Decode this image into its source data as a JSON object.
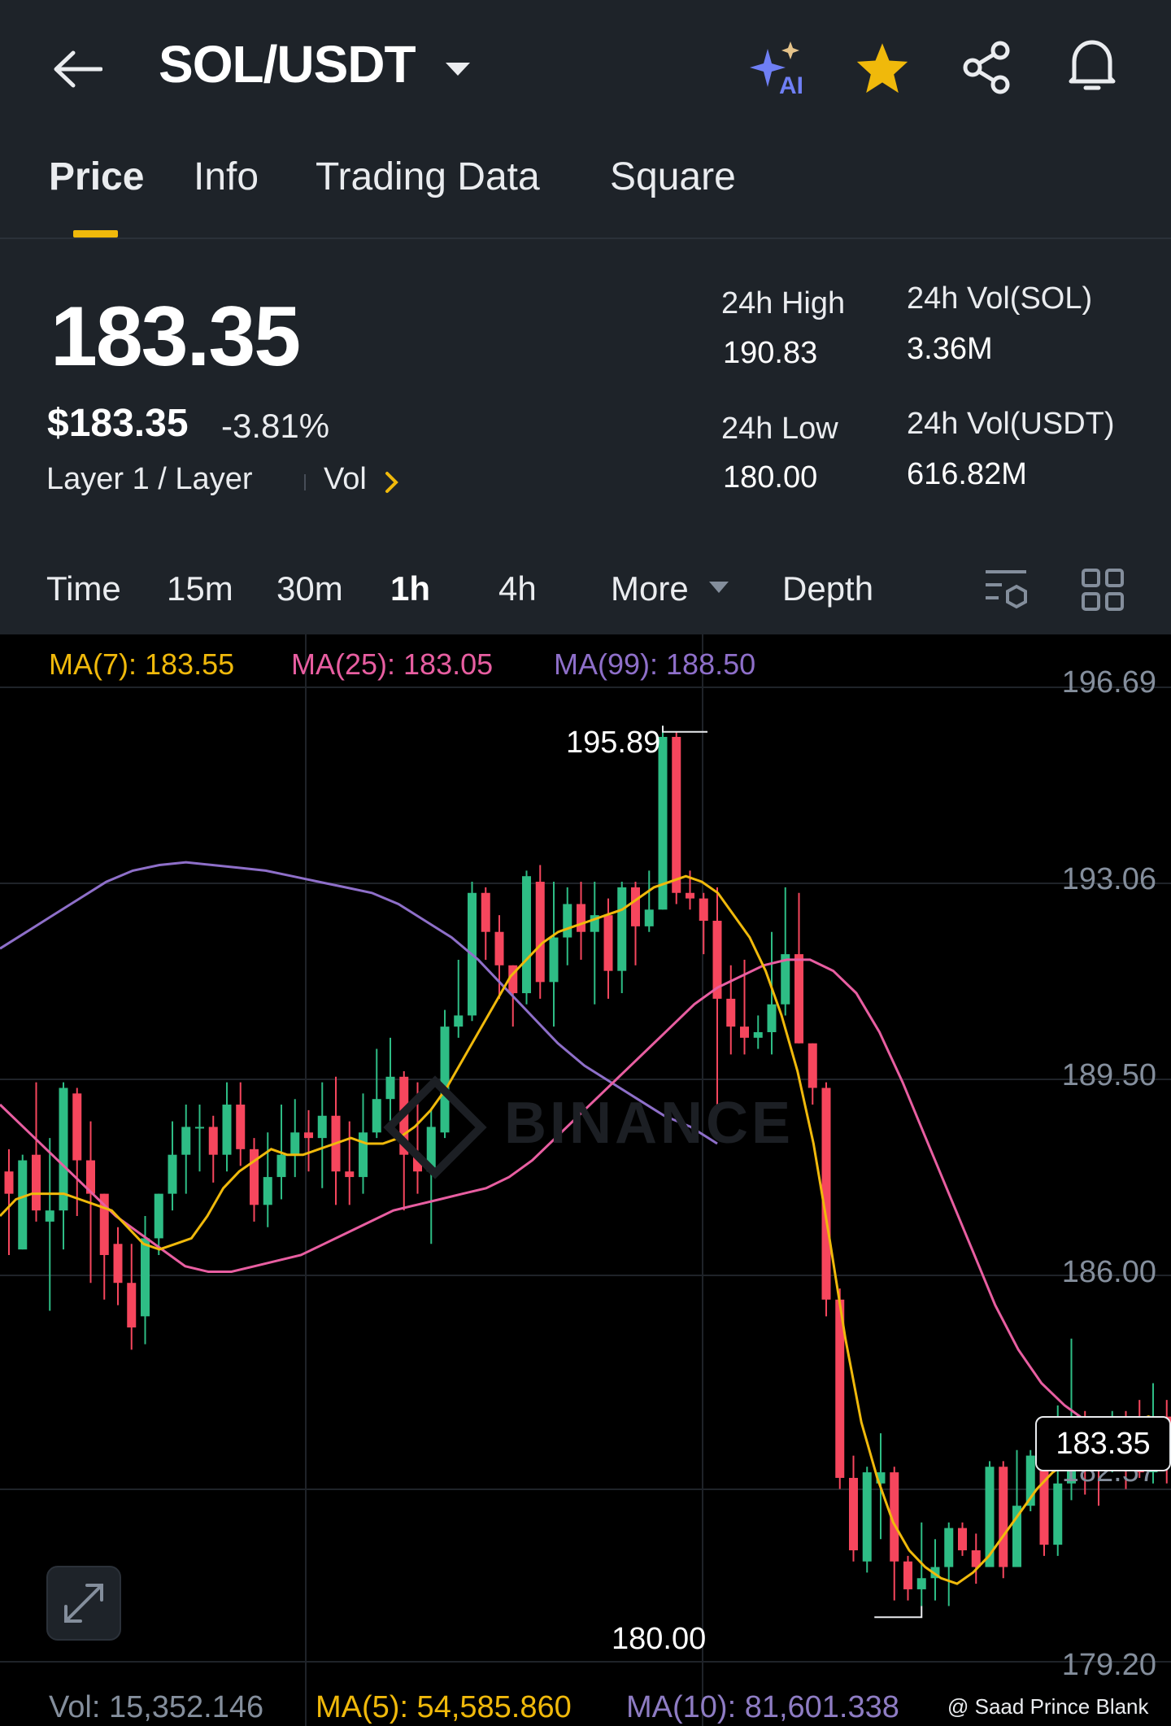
{
  "header": {
    "title": "SOL/USDT",
    "ai_label": "AI"
  },
  "tabs": [
    {
      "label": "Price",
      "active": true
    },
    {
      "label": "Info"
    },
    {
      "label": "Trading Data"
    },
    {
      "label": "Square"
    }
  ],
  "price": {
    "last": "183.35",
    "usd": "$183.35",
    "change": "-3.81%",
    "tag_category": "Layer 1 / Layer",
    "tag_vol": "Vol"
  },
  "stats": {
    "high_label": "24h High",
    "high_value": "190.83",
    "low_label": "24h Low",
    "low_value": "180.00",
    "vol_sol_label": "24h Vol(SOL)",
    "vol_sol_value": "3.36M",
    "vol_usdt_label": "24h Vol(USDT)",
    "vol_usdt_value": "616.82M"
  },
  "intervals": [
    "Time",
    "15m",
    "30m",
    "1h",
    "4h"
  ],
  "interval_active": "1h",
  "more_label": "More",
  "depth_label": "Depth",
  "ma_legend": {
    "ma7": "MA(7): 183.55",
    "ma25": "MA(25): 183.05",
    "ma99": "MA(99): 188.50"
  },
  "colors": {
    "up": "#2ebd85",
    "down": "#f6465d",
    "ma7": "#f0b90b",
    "ma25": "#e85ea1",
    "ma99": "#8e6fc9",
    "accent": "#f0b90b",
    "vol_ma10": "#8e7cc3"
  },
  "chart_data": {
    "type": "candlestick",
    "y_ticks": [
      "196.69",
      "193.06",
      "189.50",
      "186.00",
      "182.57",
      "179.20"
    ],
    "ylim": [
      179.2,
      196.69
    ],
    "high_marker": "195.89",
    "low_marker": "180.00",
    "current_price": "183.35",
    "candles": [
      [
        188.0,
        187.6,
        188.4,
        186.5
      ],
      [
        186.6,
        188.2,
        188.3,
        186.6
      ],
      [
        188.3,
        187.3,
        189.6,
        187.1
      ],
      [
        187.1,
        187.3,
        188.6,
        185.5
      ],
      [
        187.3,
        189.5,
        189.6,
        186.6
      ],
      [
        189.4,
        188.2,
        189.5,
        187.2
      ],
      [
        188.2,
        187.6,
        188.9,
        186.0
      ],
      [
        187.6,
        186.5,
        187.6,
        185.7
      ],
      [
        186.7,
        186.0,
        187.0,
        185.6
      ],
      [
        186.0,
        185.2,
        186.7,
        184.8
      ],
      [
        185.4,
        186.8,
        187.2,
        184.9
      ],
      [
        186.8,
        187.6,
        187.6,
        186.5
      ],
      [
        187.6,
        188.3,
        188.9,
        187.3
      ],
      [
        188.3,
        188.8,
        189.2,
        187.6
      ],
      [
        188.8,
        188.8,
        189.2,
        188.0
      ],
      [
        188.8,
        188.3,
        189.0,
        187.8
      ],
      [
        188.3,
        189.2,
        189.6,
        188.0
      ],
      [
        189.2,
        188.4,
        189.6,
        188.1
      ],
      [
        188.4,
        187.4,
        188.6,
        187.1
      ],
      [
        187.4,
        187.9,
        188.7,
        187.0
      ],
      [
        187.9,
        188.3,
        189.2,
        187.5
      ],
      [
        188.3,
        188.7,
        189.3,
        187.9
      ],
      [
        188.7,
        188.6,
        189.1,
        188.0
      ],
      [
        188.6,
        189.0,
        189.6,
        187.7
      ],
      [
        189.0,
        188.0,
        189.7,
        187.4
      ],
      [
        188.0,
        187.9,
        188.9,
        187.4
      ],
      [
        187.9,
        188.7,
        189.4,
        187.6
      ],
      [
        188.7,
        189.3,
        190.2,
        188.6
      ],
      [
        189.3,
        189.7,
        190.4,
        188.8
      ],
      [
        189.7,
        188.3,
        189.8,
        187.3
      ],
      [
        188.3,
        188.0,
        189.6,
        187.6
      ],
      [
        188.0,
        188.8,
        189.1,
        186.7
      ],
      [
        188.7,
        190.6,
        190.9,
        188.6
      ],
      [
        190.6,
        190.8,
        191.8,
        190.4
      ],
      [
        190.8,
        193.0,
        193.2,
        190.7
      ],
      [
        193.0,
        192.3,
        193.1,
        191.8
      ],
      [
        192.3,
        191.7,
        192.6,
        191.1
      ],
      [
        191.7,
        191.2,
        191.7,
        190.6
      ],
      [
        191.2,
        193.3,
        193.4,
        191.0
      ],
      [
        193.2,
        191.4,
        193.5,
        191.1
      ],
      [
        191.4,
        192.2,
        193.2,
        190.6
      ],
      [
        192.2,
        192.8,
        193.1,
        191.7
      ],
      [
        192.8,
        192.3,
        193.2,
        191.8
      ],
      [
        192.3,
        192.6,
        193.2,
        191.0
      ],
      [
        192.6,
        191.6,
        192.9,
        191.1
      ],
      [
        191.6,
        193.1,
        193.2,
        191.2
      ],
      [
        193.1,
        192.4,
        193.2,
        191.7
      ],
      [
        192.4,
        192.7,
        193.4,
        192.3
      ],
      [
        192.7,
        195.8,
        196.0,
        192.7
      ],
      [
        195.8,
        193.0,
        195.9,
        192.8
      ],
      [
        193.0,
        192.9,
        193.4,
        192.7
      ],
      [
        192.9,
        192.5,
        193.0,
        191.9
      ],
      [
        192.5,
        191.1,
        193.1,
        189.2
      ],
      [
        191.1,
        190.6,
        191.7,
        190.1
      ],
      [
        190.6,
        190.4,
        191.8,
        190.1
      ],
      [
        190.4,
        190.5,
        190.8,
        190.2
      ],
      [
        190.5,
        191.0,
        192.3,
        190.1
      ],
      [
        191.0,
        191.9,
        193.1,
        190.8
      ],
      [
        191.9,
        190.3,
        193.0,
        190.3
      ],
      [
        190.3,
        189.5,
        190.3,
        189.2
      ],
      [
        189.5,
        185.7,
        189.6,
        185.4
      ],
      [
        185.7,
        182.5,
        185.9,
        182.3
      ],
      [
        182.5,
        181.2,
        182.9,
        181.0
      ],
      [
        181.0,
        182.6,
        182.7,
        180.8
      ],
      [
        182.4,
        182.6,
        183.3,
        181.4
      ],
      [
        182.6,
        181.0,
        182.7,
        180.3
      ],
      [
        181.0,
        180.5,
        181.1,
        180.3
      ],
      [
        180.5,
        180.7,
        181.7,
        180.2
      ],
      [
        180.7,
        180.9,
        181.4,
        180.3
      ],
      [
        180.9,
        181.6,
        181.7,
        180.2
      ],
      [
        181.6,
        181.2,
        181.7,
        181.1
      ],
      [
        181.2,
        180.9,
        181.5,
        180.6
      ],
      [
        180.9,
        182.7,
        182.8,
        181.3
      ],
      [
        182.7,
        180.9,
        182.8,
        180.7
      ],
      [
        180.9,
        182.0,
        183.0,
        180.9
      ],
      [
        182.0,
        182.9,
        183.0,
        181.9
      ],
      [
        182.9,
        181.3,
        183.0,
        181.1
      ],
      [
        181.3,
        182.4,
        183.8,
        181.1
      ],
      [
        182.4,
        183.5,
        185.0,
        182.1
      ],
      [
        183.5,
        183.3,
        183.7,
        182.2
      ],
      [
        183.3,
        182.9,
        183.5,
        182.0
      ],
      [
        182.9,
        183.6,
        183.7,
        182.6
      ],
      [
        183.6,
        183.4,
        183.7,
        182.3
      ],
      [
        183.4,
        182.6,
        183.9,
        182.5
      ],
      [
        182.6,
        183.6,
        184.2,
        182.4
      ],
      [
        183.6,
        182.8,
        183.9,
        182.4
      ],
      [
        182.8,
        183.2,
        183.8,
        182.6
      ]
    ],
    "ma7": [
      187.2,
      187.5,
      187.6,
      187.6,
      187.6,
      187.5,
      187.4,
      187.3,
      187.0,
      186.7,
      186.6,
      186.7,
      186.8,
      187.2,
      187.7,
      188.0,
      188.2,
      188.4,
      188.3,
      188.3,
      188.4,
      188.5,
      188.6,
      188.5,
      188.5,
      188.6,
      188.8,
      189.1,
      189.5,
      190.0,
      190.5,
      191.0,
      191.5,
      191.8,
      192.1,
      192.3,
      192.4,
      192.5,
      192.6,
      192.7,
      192.9,
      193.1,
      193.2,
      193.3,
      193.2,
      193.0,
      192.6,
      192.2,
      191.6,
      190.8,
      189.8,
      188.5,
      186.8,
      185.0,
      183.5,
      182.5,
      181.7,
      181.2,
      180.9,
      180.7,
      180.6,
      180.8,
      181.1,
      181.5,
      181.9,
      182.3,
      182.6,
      182.8,
      183.0,
      183.2,
      183.3,
      183.5,
      183.6,
      183.5,
      183.4
    ],
    "ma25": [
      189.2,
      188.8,
      188.4,
      188.0,
      187.6,
      187.2,
      186.9,
      186.6,
      186.3,
      186.2,
      186.2,
      186.3,
      186.4,
      186.5,
      186.7,
      186.9,
      187.1,
      187.3,
      187.4,
      187.5,
      187.6,
      187.7,
      187.9,
      188.2,
      188.6,
      189.0,
      189.4,
      189.8,
      190.2,
      190.6,
      191.0,
      191.3,
      191.5,
      191.7,
      191.8,
      191.8,
      191.6,
      191.2,
      190.5,
      189.6,
      188.6,
      187.6,
      186.6,
      185.6,
      184.8,
      184.2,
      183.8,
      183.5,
      183.3,
      183.2,
      183.1,
      183.05
    ],
    "ma99": [
      192.0,
      192.3,
      192.6,
      192.9,
      193.2,
      193.4,
      193.5,
      193.55,
      193.5,
      193.45,
      193.4,
      193.3,
      193.2,
      193.1,
      193.0,
      192.8,
      192.5,
      192.2,
      191.8,
      191.3,
      190.8,
      190.3,
      189.9,
      189.6,
      189.3,
      189.0,
      188.8,
      188.5
    ]
  },
  "volume_legend": {
    "vol": "Vol: 15,352.146",
    "ma5": "MA(5): 54,585.860",
    "ma10": "MA(10): 81,601.338"
  },
  "watermark": "BINANCE",
  "credit": "@ Saad Prince Blank"
}
